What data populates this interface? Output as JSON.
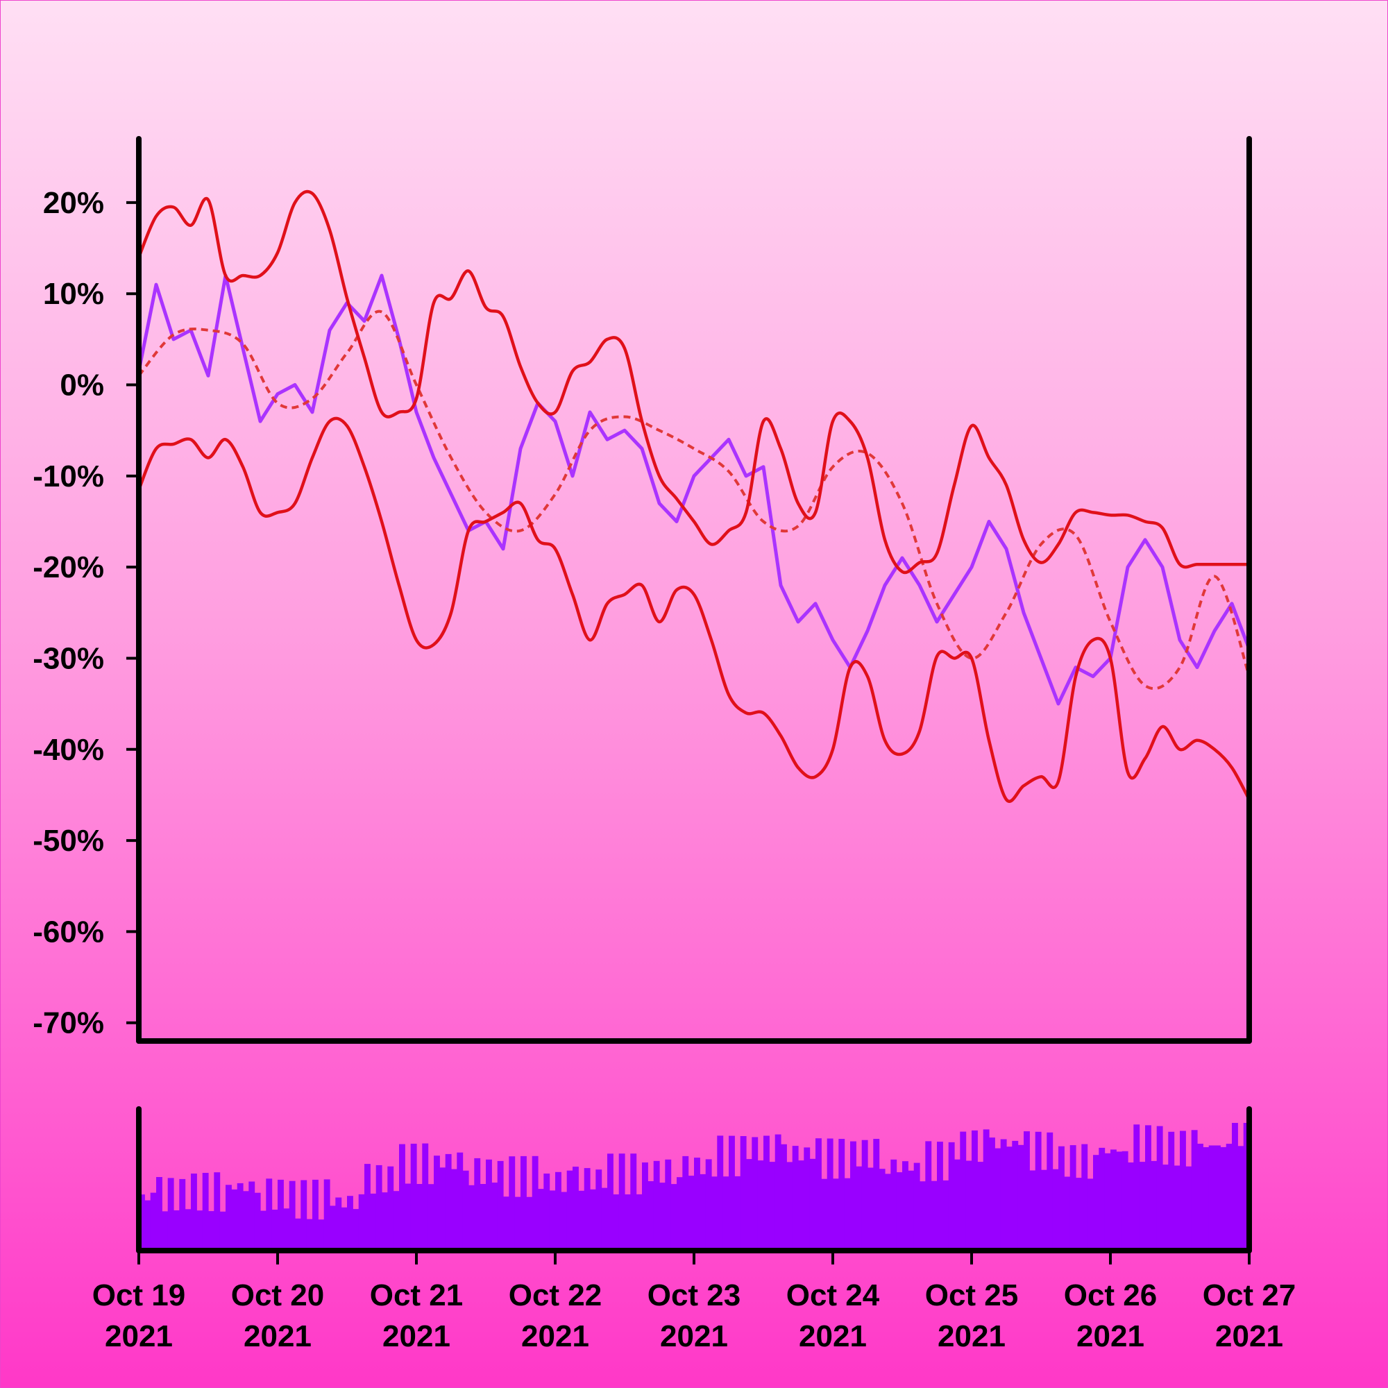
{
  "colors": {
    "price": "#aa33ff",
    "band": "#e0101a",
    "midline": "#e03838",
    "volume": "#9900ff",
    "axis": "#000000"
  },
  "chart_data": [
    {
      "type": "line",
      "title": "",
      "xlabel": "",
      "ylabel": "",
      "grid": false,
      "x_range": [
        "2021-10-19",
        "2021-10-27"
      ],
      "ylim": [
        -72,
        27
      ],
      "y_ticks": [
        {
          "value": 20,
          "label": "20%"
        },
        {
          "value": 10,
          "label": "10%"
        },
        {
          "value": 0,
          "label": "0%"
        },
        {
          "value": -10,
          "label": "-10%"
        },
        {
          "value": -20,
          "label": "-20%"
        },
        {
          "value": -30,
          "label": "-30%"
        },
        {
          "value": -40,
          "label": "-40%"
        },
        {
          "value": -50,
          "label": "-50%"
        },
        {
          "value": -60,
          "label": "-60%"
        },
        {
          "value": -70,
          "label": "-70%"
        }
      ],
      "x_ticks": [
        {
          "value": "2021-10-19",
          "line1": "Oct 19",
          "line2": "2021"
        },
        {
          "value": "2021-10-20",
          "line1": "Oct 20",
          "line2": "2021"
        },
        {
          "value": "2021-10-21",
          "line1": "Oct 21",
          "line2": "2021"
        },
        {
          "value": "2021-10-22",
          "line1": "Oct 22",
          "line2": "2021"
        },
        {
          "value": "2021-10-23",
          "line1": "Oct 23",
          "line2": "2021"
        },
        {
          "value": "2021-10-24",
          "line1": "Oct 24",
          "line2": "2021"
        },
        {
          "value": "2021-10-25",
          "line1": "Oct 25",
          "line2": "2021"
        },
        {
          "value": "2021-10-26",
          "line1": "Oct 26",
          "line2": "2021"
        },
        {
          "value": "2021-10-27",
          "line1": "Oct 27",
          "line2": "2021"
        }
      ],
      "series": [
        {
          "role": "price",
          "x": [
            "2021-10-19T00:00",
            "2021-10-19T03:00",
            "2021-10-19T06:00",
            "2021-10-19T09:00",
            "2021-10-19T12:00",
            "2021-10-19T15:00",
            "2021-10-19T18:00",
            "2021-10-19T21:00",
            "2021-10-20T00:00",
            "2021-10-20T03:00",
            "2021-10-20T06:00",
            "2021-10-20T09:00",
            "2021-10-20T12:00",
            "2021-10-20T15:00",
            "2021-10-20T18:00",
            "2021-10-20T21:00",
            "2021-10-21T00:00",
            "2021-10-21T03:00",
            "2021-10-21T06:00",
            "2021-10-21T09:00",
            "2021-10-21T12:00",
            "2021-10-21T15:00",
            "2021-10-21T18:00",
            "2021-10-21T21:00",
            "2021-10-22T00:00",
            "2021-10-22T03:00",
            "2021-10-22T06:00",
            "2021-10-22T09:00",
            "2021-10-22T12:00",
            "2021-10-22T15:00",
            "2021-10-22T18:00",
            "2021-10-22T21:00",
            "2021-10-23T00:00",
            "2021-10-23T03:00",
            "2021-10-23T06:00",
            "2021-10-23T09:00",
            "2021-10-23T12:00",
            "2021-10-23T15:00",
            "2021-10-23T18:00",
            "2021-10-23T21:00",
            "2021-10-24T00:00",
            "2021-10-24T03:00",
            "2021-10-24T06:00",
            "2021-10-24T09:00",
            "2021-10-24T12:00",
            "2021-10-24T15:00",
            "2021-10-24T18:00",
            "2021-10-24T21:00",
            "2021-10-25T00:00",
            "2021-10-25T03:00",
            "2021-10-25T06:00",
            "2021-10-25T09:00",
            "2021-10-25T12:00",
            "2021-10-25T15:00",
            "2021-10-25T18:00",
            "2021-10-25T21:00",
            "2021-10-26T00:00",
            "2021-10-26T03:00",
            "2021-10-26T06:00",
            "2021-10-26T09:00",
            "2021-10-26T12:00",
            "2021-10-26T15:00",
            "2021-10-26T18:00",
            "2021-10-26T21:00",
            "2021-10-27T00:00"
          ],
          "values": [
            1.5,
            11,
            5,
            6,
            1,
            12,
            4,
            -4,
            -1,
            0,
            -3,
            6,
            9,
            7,
            12,
            5,
            -3,
            -8,
            -12,
            -16,
            -15,
            -18,
            -7,
            -2,
            -4,
            -10,
            -3,
            -6,
            -5,
            -7,
            -13,
            -15,
            -10,
            -8,
            -6,
            -10,
            -9,
            -22,
            -26,
            -24,
            -28,
            -31,
            -27,
            -22,
            -19,
            -22,
            -26,
            -23,
            -20,
            -15,
            -18,
            -25,
            -30,
            -35,
            -31,
            -32,
            -30,
            -20,
            -17,
            -20,
            -28,
            -31,
            -27,
            -24,
            -29
          ]
        },
        {
          "role": "moving-average",
          "dashed": true,
          "x": [
            "2021-10-19T00:00",
            "2021-10-19T06:00",
            "2021-10-19T12:00",
            "2021-10-19T18:00",
            "2021-10-20T00:00",
            "2021-10-20T06:00",
            "2021-10-20T12:00",
            "2021-10-20T18:00",
            "2021-10-21T00:00",
            "2021-10-21T06:00",
            "2021-10-21T12:00",
            "2021-10-21T18:00",
            "2021-10-22T00:00",
            "2021-10-22T06:00",
            "2021-10-22T12:00",
            "2021-10-22T18:00",
            "2021-10-23T00:00",
            "2021-10-23T06:00",
            "2021-10-23T12:00",
            "2021-10-23T18:00",
            "2021-10-24T00:00",
            "2021-10-24T06:00",
            "2021-10-24T12:00",
            "2021-10-24T18:00",
            "2021-10-25T00:00",
            "2021-10-25T06:00",
            "2021-10-25T12:00",
            "2021-10-25T18:00",
            "2021-10-26T00:00",
            "2021-10-26T06:00",
            "2021-10-26T12:00",
            "2021-10-26T18:00",
            "2021-10-27T00:00"
          ],
          "values": [
            1,
            5.5,
            6,
            4.5,
            -2,
            -1.5,
            3.5,
            8,
            0,
            -8,
            -14,
            -16,
            -12,
            -5,
            -3.5,
            -5,
            -7,
            -9.5,
            -15,
            -15.5,
            -9,
            -7.5,
            -13,
            -24,
            -30,
            -25,
            -17.5,
            -16.5,
            -26,
            -33,
            -31,
            -21,
            -32
          ]
        },
        {
          "role": "upper-band",
          "x": [
            "2021-10-19T00:00",
            "2021-10-19T03:00",
            "2021-10-19T06:00",
            "2021-10-19T09:00",
            "2021-10-19T12:00",
            "2021-10-19T15:00",
            "2021-10-19T18:00",
            "2021-10-19T21:00",
            "2021-10-20T00:00",
            "2021-10-20T03:00",
            "2021-10-20T06:00",
            "2021-10-20T09:00",
            "2021-10-20T12:00",
            "2021-10-20T15:00",
            "2021-10-20T18:00",
            "2021-10-20T21:00",
            "2021-10-21T00:00",
            "2021-10-21T03:00",
            "2021-10-21T06:00",
            "2021-10-21T09:00",
            "2021-10-21T12:00",
            "2021-10-21T15:00",
            "2021-10-21T18:00",
            "2021-10-21T21:00",
            "2021-10-22T00:00",
            "2021-10-22T03:00",
            "2021-10-22T06:00",
            "2021-10-22T09:00",
            "2021-10-22T12:00",
            "2021-10-22T15:00",
            "2021-10-22T18:00",
            "2021-10-22T21:00",
            "2021-10-23T00:00",
            "2021-10-23T03:00",
            "2021-10-23T06:00",
            "2021-10-23T09:00",
            "2021-10-23T12:00",
            "2021-10-23T15:00",
            "2021-10-23T18:00",
            "2021-10-23T21:00",
            "2021-10-24T00:00",
            "2021-10-24T03:00",
            "2021-10-24T06:00",
            "2021-10-24T09:00",
            "2021-10-24T12:00",
            "2021-10-24T15:00",
            "2021-10-24T18:00",
            "2021-10-24T21:00",
            "2021-10-25T00:00",
            "2021-10-25T03:00",
            "2021-10-25T06:00",
            "2021-10-25T09:00",
            "2021-10-25T12:00",
            "2021-10-25T15:00",
            "2021-10-25T18:00",
            "2021-10-25T21:00",
            "2021-10-26T00:00",
            "2021-10-26T03:00",
            "2021-10-26T06:00",
            "2021-10-26T09:00",
            "2021-10-26T12:00",
            "2021-10-26T15:00",
            "2021-10-26T18:00",
            "2021-10-26T21:00",
            "2021-10-27T00:00"
          ],
          "values": [
            14,
            18.5,
            19.5,
            17.5,
            20.3,
            12,
            12,
            12,
            14.5,
            20,
            21,
            17,
            9.5,
            3,
            -3,
            -3,
            -1.5,
            9,
            9.5,
            12.5,
            8.5,
            7.5,
            2,
            -2,
            -3,
            1.5,
            2.5,
            5,
            4,
            -4,
            -10,
            -12.5,
            -15,
            -17.5,
            -16,
            -14,
            -4,
            -7,
            -13,
            -14,
            -4,
            -4,
            -8,
            -17,
            -20.5,
            -19.5,
            -18.5,
            -11,
            -4.5,
            -8,
            -11,
            -17,
            -19.5,
            -17.5,
            -14,
            -14,
            -14.3,
            -14.3,
            -15,
            -15.7,
            -19.7,
            -19.7,
            -19.7,
            -19.7,
            -19.7
          ]
        },
        {
          "role": "lower-band",
          "x": [
            "2021-10-19T00:00",
            "2021-10-19T03:00",
            "2021-10-19T06:00",
            "2021-10-19T09:00",
            "2021-10-19T12:00",
            "2021-10-19T15:00",
            "2021-10-19T18:00",
            "2021-10-19T21:00",
            "2021-10-20T00:00",
            "2021-10-20T03:00",
            "2021-10-20T06:00",
            "2021-10-20T09:00",
            "2021-10-20T12:00",
            "2021-10-20T15:00",
            "2021-10-20T18:00",
            "2021-10-20T21:00",
            "2021-10-21T00:00",
            "2021-10-21T03:00",
            "2021-10-21T06:00",
            "2021-10-21T09:00",
            "2021-10-21T12:00",
            "2021-10-21T15:00",
            "2021-10-21T18:00",
            "2021-10-21T21:00",
            "2021-10-22T00:00",
            "2021-10-22T03:00",
            "2021-10-22T06:00",
            "2021-10-22T09:00",
            "2021-10-22T12:00",
            "2021-10-22T15:00",
            "2021-10-22T18:00",
            "2021-10-22T21:00",
            "2021-10-23T00:00",
            "2021-10-23T03:00",
            "2021-10-23T06:00",
            "2021-10-23T09:00",
            "2021-10-23T12:00",
            "2021-10-23T15:00",
            "2021-10-23T18:00",
            "2021-10-23T21:00",
            "2021-10-24T00:00",
            "2021-10-24T03:00",
            "2021-10-24T06:00",
            "2021-10-24T09:00",
            "2021-10-24T12:00",
            "2021-10-24T15:00",
            "2021-10-24T18:00",
            "2021-10-24T21:00",
            "2021-10-25T00:00",
            "2021-10-25T03:00",
            "2021-10-25T06:00",
            "2021-10-25T09:00",
            "2021-10-25T12:00",
            "2021-10-25T15:00",
            "2021-10-25T18:00",
            "2021-10-25T21:00",
            "2021-10-26T00:00",
            "2021-10-26T03:00",
            "2021-10-26T06:00",
            "2021-10-26T09:00",
            "2021-10-26T12:00",
            "2021-10-26T15:00",
            "2021-10-26T18:00",
            "2021-10-26T21:00",
            "2021-10-27T00:00"
          ],
          "values": [
            -11.5,
            -7,
            -6.5,
            -6,
            -8,
            -6,
            -9,
            -14,
            -14,
            -13,
            -8,
            -4,
            -4.5,
            -9,
            -15,
            -22,
            -28,
            -28.5,
            -25,
            -16,
            -15,
            -14,
            -13,
            -17,
            -18,
            -23,
            -28,
            -24,
            -23,
            -22,
            -26,
            -22.5,
            -23,
            -28,
            -34,
            -36,
            -36,
            -38.5,
            -42,
            -43,
            -40,
            -31,
            -32,
            -39,
            -40.5,
            -38,
            -29.8,
            -30,
            -30,
            -39,
            -45.5,
            -44,
            -43,
            -43.5,
            -32,
            -28,
            -30,
            -42.5,
            -41,
            -37.5,
            -40,
            -39,
            -40,
            -42,
            -45.5
          ]
        }
      ]
    },
    {
      "type": "bar",
      "title": "",
      "xlabel": "",
      "ylabel": "",
      "grid": false,
      "x_range": [
        "2021-10-19",
        "2021-10-27"
      ],
      "series": [
        {
          "role": "volume",
          "x": [
            "2021-10-19T00:00",
            "2021-10-19T06:00",
            "2021-10-19T12:00",
            "2021-10-19T18:00",
            "2021-10-20T00:00",
            "2021-10-20T06:00",
            "2021-10-20T12:00",
            "2021-10-20T18:00",
            "2021-10-21T00:00",
            "2021-10-21T06:00",
            "2021-10-21T12:00",
            "2021-10-21T18:00",
            "2021-10-22T00:00",
            "2021-10-22T06:00",
            "2021-10-22T12:00",
            "2021-10-22T18:00",
            "2021-10-23T00:00",
            "2021-10-23T06:00",
            "2021-10-23T12:00",
            "2021-10-23T18:00",
            "2021-10-24T00:00",
            "2021-10-24T06:00",
            "2021-10-24T12:00",
            "2021-10-24T18:00",
            "2021-10-25T00:00",
            "2021-10-25T06:00",
            "2021-10-25T12:00",
            "2021-10-25T18:00",
            "2021-10-26T00:00",
            "2021-10-26T06:00",
            "2021-10-26T12:00",
            "2021-10-26T18:00",
            "2021-10-27T00:00"
          ],
          "values": [
            0.42,
            0.44,
            0.46,
            0.5,
            0.44,
            0.4,
            0.38,
            0.56,
            0.68,
            0.7,
            0.62,
            0.58,
            0.54,
            0.56,
            0.6,
            0.62,
            0.66,
            0.74,
            0.8,
            0.76,
            0.72,
            0.76,
            0.66,
            0.7,
            0.82,
            0.84,
            0.78,
            0.7,
            0.78,
            0.84,
            0.8,
            0.82,
            0.96
          ]
        }
      ]
    }
  ]
}
